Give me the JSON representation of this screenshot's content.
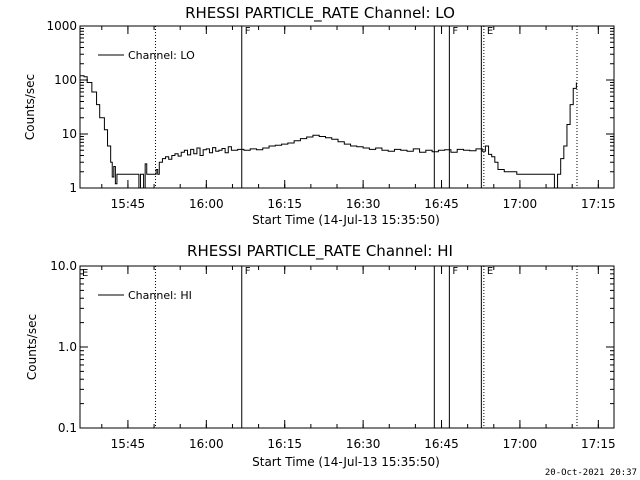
{
  "timestamp": "20-Oct-2021 20:37",
  "chart_data": [
    {
      "type": "line",
      "title": "RHESSI PARTICLE_RATE Channel: LO",
      "xlabel": "Start Time (14-Jul-13 15:35:50)",
      "ylabel": "Counts/sec",
      "yscale": "log",
      "ylim": [
        1,
        1000
      ],
      "yticks": [
        {
          "v": 1,
          "l": "1"
        },
        {
          "v": 10,
          "l": "10"
        },
        {
          "v": 100,
          "l": "100"
        },
        {
          "v": 1000,
          "l": "1000"
        }
      ],
      "xlim": [
        15.5972,
        17.3
      ],
      "xticks": [
        {
          "v": 15.75,
          "l": "15:45"
        },
        {
          "v": 16.0,
          "l": "16:00"
        },
        {
          "v": 16.25,
          "l": "16:15"
        },
        {
          "v": 16.5,
          "l": "16:30"
        },
        {
          "v": 16.75,
          "l": "16:45"
        },
        {
          "v": 17.0,
          "l": "17:00"
        },
        {
          "v": 17.25,
          "l": "17:15"
        }
      ],
      "legend_location": "top-left",
      "series": [
        {
          "name": "Channel: LO",
          "x": [
            15.597,
            15.61,
            15.62,
            15.635,
            15.65,
            15.66,
            15.675,
            15.685,
            15.695,
            15.7,
            15.705,
            15.71,
            15.715,
            15.72,
            15.73,
            15.74,
            15.75,
            15.76,
            15.77,
            15.78,
            15.785,
            15.79,
            15.8,
            15.805,
            15.81,
            15.82,
            15.83,
            15.835,
            15.84,
            15.845,
            15.85,
            15.86,
            15.87,
            15.88,
            15.89,
            15.9,
            15.91,
            15.92,
            15.93,
            15.94,
            15.95,
            15.96,
            15.97,
            15.98,
            15.99,
            16.0,
            16.01,
            16.02,
            16.03,
            16.04,
            16.05,
            16.06,
            16.07,
            16.08,
            16.1,
            16.12,
            16.14,
            16.16,
            16.18,
            16.2,
            16.22,
            16.24,
            16.26,
            16.28,
            16.3,
            16.32,
            16.34,
            16.36,
            16.38,
            16.4,
            16.42,
            16.44,
            16.46,
            16.48,
            16.5,
            16.52,
            16.54,
            16.56,
            16.58,
            16.6,
            16.62,
            16.64,
            16.66,
            16.68,
            16.7,
            16.72,
            16.74,
            16.76,
            16.78,
            16.8,
            16.82,
            16.84,
            16.86,
            16.88,
            16.89,
            16.9,
            16.91,
            16.92,
            16.93,
            16.95,
            16.97,
            16.99,
            17.01,
            17.03,
            17.05,
            17.07,
            17.08,
            17.09,
            17.1,
            17.11,
            17.12,
            17.13,
            17.14,
            17.15,
            17.16,
            17.17,
            17.18
          ],
          "y": [
            120,
            115,
            90,
            60,
            35,
            20,
            12,
            6,
            3,
            1.6,
            2.5,
            1.2,
            1.8,
            1.8,
            1.8,
            1.8,
            1.8,
            1.8,
            1.8,
            1.8,
            1.0,
            1.8,
            1.0,
            2.8,
            1.8,
            1.8,
            1.8,
            1.8,
            2.2,
            1.8,
            3.0,
            3.5,
            3.8,
            3.4,
            4.0,
            4.3,
            3.9,
            4.6,
            5.0,
            4.1,
            5.2,
            4.3,
            5.5,
            4.0,
            5.1,
            5.3,
            4.5,
            5.6,
            4.8,
            5.0,
            5.4,
            4.5,
            5.8,
            5.0,
            5.2,
            5.0,
            5.3,
            5.1,
            5.5,
            6.0,
            6.2,
            6.5,
            6.8,
            7.5,
            8.2,
            8.8,
            9.5,
            9.0,
            8.5,
            8.0,
            7.2,
            6.5,
            6.0,
            5.8,
            5.5,
            5.2,
            5.5,
            5.0,
            4.8,
            5.2,
            5.0,
            4.8,
            5.3,
            4.6,
            5.0,
            4.7,
            5.0,
            5.1,
            4.6,
            5.2,
            5.0,
            4.9,
            5.3,
            4.8,
            6.0,
            4.2,
            3.8,
            3.0,
            2.2,
            2.0,
            2.0,
            1.8,
            1.8,
            1.8,
            1.8,
            1.8,
            1.8,
            1.8,
            1.8,
            1.0,
            1.8,
            3.5,
            6,
            15,
            35,
            70,
            90
          ]
        }
      ],
      "markers": [
        {
          "x": 15.838,
          "style": "dotted",
          "label": ""
        },
        {
          "x": 16.113,
          "style": "solid",
          "label": "F"
        },
        {
          "x": 16.727,
          "style": "solid",
          "label": ""
        },
        {
          "x": 16.775,
          "style": "solid",
          "label": "F"
        },
        {
          "x": 16.877,
          "style": "solid",
          "label": ""
        },
        {
          "x": 16.885,
          "style": "dotted",
          "label": "E"
        },
        {
          "x": 17.182,
          "style": "dotted",
          "label": ""
        }
      ],
      "corner_label": ""
    },
    {
      "type": "line",
      "title": "RHESSI PARTICLE_RATE Channel: HI",
      "xlabel": "Start Time (14-Jul-13 15:35:50)",
      "ylabel": "Counts/sec",
      "yscale": "log",
      "ylim": [
        0.1,
        10
      ],
      "yticks": [
        {
          "v": 0.1,
          "l": "0.1"
        },
        {
          "v": 1,
          "l": "1.0"
        },
        {
          "v": 10,
          "l": "10.0"
        }
      ],
      "xlim": [
        15.5972,
        17.3
      ],
      "xticks": [
        {
          "v": 15.75,
          "l": "15:45"
        },
        {
          "v": 16.0,
          "l": "16:00"
        },
        {
          "v": 16.25,
          "l": "16:15"
        },
        {
          "v": 16.5,
          "l": "16:30"
        },
        {
          "v": 16.75,
          "l": "16:45"
        },
        {
          "v": 17.0,
          "l": "17:00"
        },
        {
          "v": 17.25,
          "l": "17:15"
        }
      ],
      "legend_location": "top-left",
      "series": [
        {
          "name": "Channel: HI",
          "x": [],
          "y": []
        }
      ],
      "markers": [
        {
          "x": 15.838,
          "style": "dotted",
          "label": ""
        },
        {
          "x": 16.113,
          "style": "solid",
          "label": "F"
        },
        {
          "x": 16.727,
          "style": "solid",
          "label": ""
        },
        {
          "x": 16.775,
          "style": "solid",
          "label": "F"
        },
        {
          "x": 16.877,
          "style": "solid",
          "label": ""
        },
        {
          "x": 16.885,
          "style": "dotted",
          "label": "E"
        },
        {
          "x": 17.182,
          "style": "dotted",
          "label": ""
        }
      ],
      "corner_label": "E"
    }
  ]
}
